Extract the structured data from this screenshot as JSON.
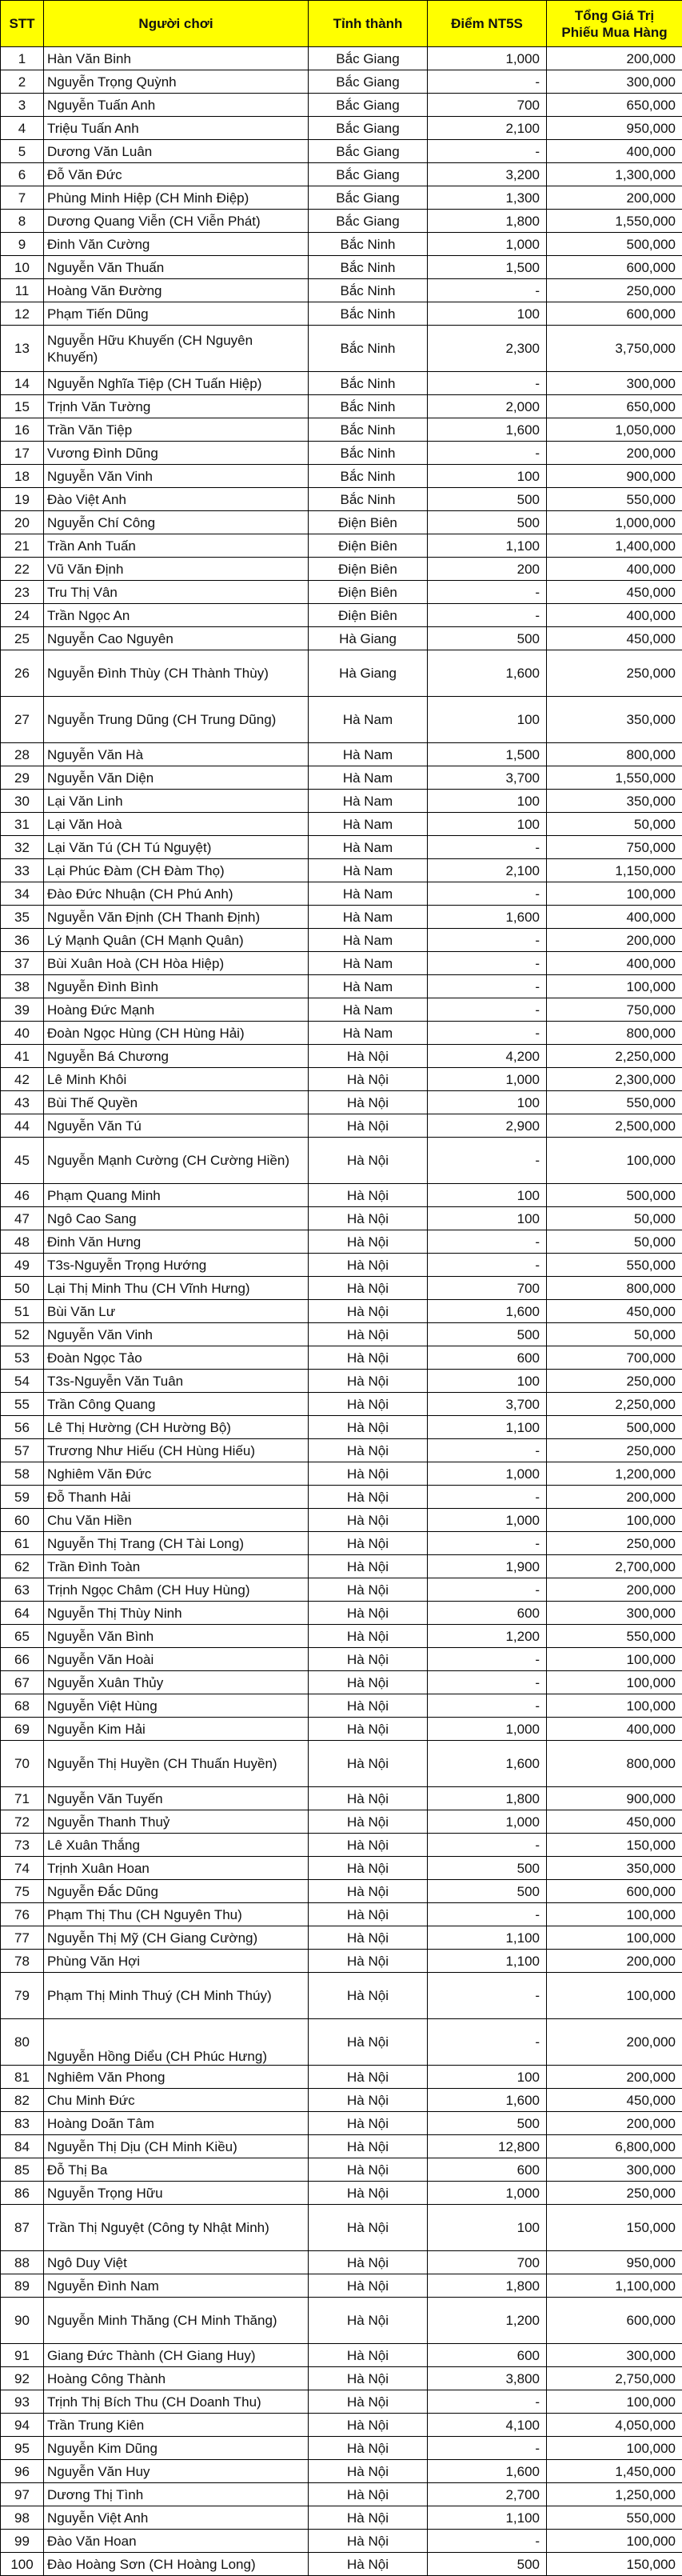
{
  "header": {
    "stt": "STT",
    "player": "Người chơi",
    "province": "Tỉnh thành",
    "points": "Điểm NT5S",
    "total_line1": "Tổng Giá Trị",
    "total_line2": "Phiếu Mua Hàng"
  },
  "colors": {
    "header_bg": "#ffff00",
    "grid": "#000000"
  },
  "rows": [
    [
      "1",
      "Hàn Văn Binh",
      "Bắc Giang",
      "1,000",
      "200,000"
    ],
    [
      "2",
      "Nguyễn Trọng Quỳnh",
      "Bắc Giang",
      "-",
      "300,000"
    ],
    [
      "3",
      "Nguyễn Tuấn Anh",
      "Bắc Giang",
      "700",
      "650,000"
    ],
    [
      "4",
      "Triệu Tuấn Anh",
      "Bắc Giang",
      "2,100",
      "950,000"
    ],
    [
      "5",
      "Dương Văn Luân",
      "Bắc Giang",
      "-",
      "400,000"
    ],
    [
      "6",
      "Đỗ Văn Đức",
      "Bắc Giang",
      "3,200",
      "1,300,000"
    ],
    [
      "7",
      "Phùng Minh Hiệp (CH Minh Điệp)",
      "Bắc Giang",
      "1,300",
      "200,000"
    ],
    [
      "8",
      "Dương Quang Viễn (CH Viễn Phát)",
      "Bắc Giang",
      "1,800",
      "1,550,000"
    ],
    [
      "9",
      "Đinh Văn  Cường",
      "Bắc Ninh",
      "1,000",
      "500,000"
    ],
    [
      "10",
      "Nguyễn Văn Thuấn",
      "Bắc Ninh",
      "1,500",
      "600,000"
    ],
    [
      "11",
      "Hoàng Văn Đường",
      "Bắc Ninh",
      "-",
      "250,000"
    ],
    [
      "12",
      "Phạm Tiến Dũng",
      "Bắc Ninh",
      "100",
      "600,000"
    ],
    [
      "13",
      "Nguyễn Hữu Khuyến (CH Nguyên Khuyến)",
      "Bắc Ninh",
      "2,300",
      "3,750,000"
    ],
    [
      "14",
      "Nguyễn Nghĩa Tiệp (CH Tuấn Hiệp)",
      "Bắc Ninh",
      "-",
      "300,000"
    ],
    [
      "15",
      "Trịnh Văn Tường",
      "Bắc Ninh",
      "2,000",
      "650,000"
    ],
    [
      "16",
      "Trần Văn Tiệp",
      "Bắc Ninh",
      "1,600",
      "1,050,000"
    ],
    [
      "17",
      "Vương Đình Dũng",
      "Bắc Ninh",
      "-",
      "200,000"
    ],
    [
      "18",
      "Nguyễn Văn Vinh",
      "Bắc Ninh",
      "100",
      "900,000"
    ],
    [
      "19",
      "Đào Việt Anh",
      "Bắc Ninh",
      "500",
      "550,000"
    ],
    [
      "20",
      "Nguyễn Chí Công",
      "Điện Biên",
      "500",
      "1,000,000"
    ],
    [
      "21",
      "Trần Anh Tuấn",
      "Điện Biên",
      "1,100",
      "1,400,000"
    ],
    [
      "22",
      "Vũ Văn Định",
      "Điện Biên",
      "200",
      "400,000"
    ],
    [
      "23",
      "Tru Thị Vân",
      "Điện Biên",
      "-",
      "450,000"
    ],
    [
      "24",
      "Trần  Ngọc An",
      "Điện Biên",
      "-",
      "400,000"
    ],
    [
      "25",
      "Nguyễn Cao Nguyên",
      "Hà Giang",
      "500",
      "450,000"
    ],
    [
      "26",
      "Nguyễn Đình Thùy (CH Thành Thùy)",
      "Hà Giang",
      "1,600",
      "250,000"
    ],
    [
      "27",
      "Nguyễn Trung Dũng (CH Trung Dũng)",
      "Hà Nam",
      "100",
      "350,000"
    ],
    [
      "28",
      "Nguyễn Văn Hà",
      "Hà Nam",
      "1,500",
      "800,000"
    ],
    [
      "29",
      "Nguyễn Văn Diện",
      "Hà Nam",
      "3,700",
      "1,550,000"
    ],
    [
      "30",
      "Lại Văn Linh",
      "Hà Nam",
      "100",
      "350,000"
    ],
    [
      "31",
      "Lại Văn Hoà",
      "Hà Nam",
      "100",
      "50,000"
    ],
    [
      "32",
      "Lại Văn  Tú (CH Tú Nguyệt)",
      "Hà Nam",
      "-",
      "750,000"
    ],
    [
      "33",
      "Lại Phúc Đàm (CH Đàm Thọ)",
      "Hà Nam",
      "2,100",
      "1,150,000"
    ],
    [
      "34",
      "Đào Đức Nhuận (CH Phú Anh)",
      "Hà Nam",
      "-",
      "100,000"
    ],
    [
      "35",
      "Nguyễn Văn Định (CH Thanh Định)",
      "Hà Nam",
      "1,600",
      "400,000"
    ],
    [
      "36",
      "Lý Mạnh Quân (CH Mạnh Quân)",
      "Hà Nam",
      "-",
      "200,000"
    ],
    [
      "37",
      "Bùi Xuân Hoà (CH Hòa Hiệp)",
      "Hà Nam",
      "-",
      "400,000"
    ],
    [
      "38",
      "Nguyễn Đình Bình",
      "Hà Nam",
      "-",
      "100,000"
    ],
    [
      "39",
      "Hoàng Đức  Mạnh",
      "Hà Nam",
      "-",
      "750,000"
    ],
    [
      "40",
      "Đoàn Ngọc Hùng (CH Hùng Hải)",
      "Hà Nam",
      "-",
      "800,000"
    ],
    [
      "41",
      "Nguyễn Bá Chương",
      "Hà Nội",
      "4,200",
      "2,250,000"
    ],
    [
      "42",
      "Lê Minh Khôi",
      "Hà Nội",
      "1,000",
      "2,300,000"
    ],
    [
      "43",
      "Bùi Thế Quyền",
      "Hà Nội",
      "100",
      "550,000"
    ],
    [
      "44",
      "Nguyễn Văn  Tú",
      "Hà Nội",
      "2,900",
      "2,500,000"
    ],
    [
      "45",
      "Nguyễn Mạnh Cường (CH Cường Hiền)",
      "Hà Nội",
      "-",
      "100,000"
    ],
    [
      "46",
      "Phạm Quang Minh",
      "Hà Nội",
      "100",
      "500,000"
    ],
    [
      "47",
      "Ngô Cao Sang",
      "Hà Nội",
      "100",
      "50,000"
    ],
    [
      "48",
      "Đinh Văn Hưng",
      "Hà Nội",
      "-",
      "50,000"
    ],
    [
      "49",
      "T3s-Nguyễn Trọng Hướng",
      "Hà Nội",
      "-",
      "550,000"
    ],
    [
      "50",
      "Lại Thị Minh Thu (CH Vĩnh Hưng)",
      "Hà Nội",
      "700",
      "800,000"
    ],
    [
      "51",
      "Bùi Văn Lư",
      "Hà Nội",
      "1,600",
      "450,000"
    ],
    [
      "52",
      "Nguyễn Văn Vinh",
      "Hà Nội",
      "500",
      "50,000"
    ],
    [
      "53",
      "Đoàn Ngọc Tảo",
      "Hà Nội",
      "600",
      "700,000"
    ],
    [
      "54",
      "T3s-Nguyễn Văn Tuân",
      "Hà Nội",
      "100",
      "250,000"
    ],
    [
      "55",
      "Trần Công Quang",
      "Hà Nội",
      "3,700",
      "2,250,000"
    ],
    [
      "56",
      "Lê Thị  Hường (CH Hường Bộ)",
      "Hà Nội",
      "1,100",
      "500,000"
    ],
    [
      "57",
      "Trương Như Hiếu (CH Hùng Hiếu)",
      "Hà Nội",
      "-",
      "250,000"
    ],
    [
      "58",
      "Nghiêm Văn Đức",
      "Hà Nội",
      "1,000",
      "1,200,000"
    ],
    [
      "59",
      "Đỗ Thanh Hải",
      "Hà Nội",
      "-",
      "200,000"
    ],
    [
      "60",
      "Chu Văn Hiền",
      "Hà Nội",
      "1,000",
      "100,000"
    ],
    [
      "61",
      "Nguyễn Thị Trang (CH Tài Long)",
      "Hà Nội",
      "-",
      "250,000"
    ],
    [
      "62",
      "Trần Đình  Toàn",
      "Hà Nội",
      "1,900",
      "2,700,000"
    ],
    [
      "63",
      "Trịnh Ngọc Châm (CH Huy Hùng)",
      "Hà Nội",
      "-",
      "200,000"
    ],
    [
      "64",
      "Nguyễn Thị Thùy Ninh",
      "Hà Nội",
      "600",
      "300,000"
    ],
    [
      "65",
      "Nguyễn Văn Bình",
      "Hà Nội",
      "1,200",
      "550,000"
    ],
    [
      "66",
      "Nguyễn Văn Hoài",
      "Hà Nội",
      "-",
      "100,000"
    ],
    [
      "67",
      "Nguyễn Xuân Thủy",
      "Hà Nội",
      "-",
      "100,000"
    ],
    [
      "68",
      "Nguyễn Việt Hùng",
      "Hà Nội",
      "-",
      "100,000"
    ],
    [
      "69",
      "Nguyễn Kim  Hải",
      "Hà Nội",
      "1,000",
      "400,000"
    ],
    [
      "70",
      "Nguyễn Thị Huyền (CH Thuấn Huyền)",
      "Hà Nội",
      "1,600",
      "800,000"
    ],
    [
      "71",
      "Nguyễn Văn  Tuyến",
      "Hà Nội",
      "1,800",
      "900,000"
    ],
    [
      "72",
      "Nguyễn Thanh Thuỷ",
      "Hà Nội",
      "1,000",
      "450,000"
    ],
    [
      "73",
      "Lê Xuân Thắng",
      "Hà Nội",
      "-",
      "150,000"
    ],
    [
      "74",
      "Trịnh Xuân Hoan",
      "Hà Nội",
      "500",
      "350,000"
    ],
    [
      "75",
      "Nguyễn Đắc Dũng",
      "Hà Nội",
      "500",
      "600,000"
    ],
    [
      "76",
      "Phạm Thị Thu (CH Nguyên Thu)",
      "Hà Nội",
      "-",
      "100,000"
    ],
    [
      "77",
      "Nguyễn Thị Mỹ (CH Giang Cường)",
      "Hà Nội",
      "1,100",
      "100,000"
    ],
    [
      "78",
      "Phùng Văn Hợi",
      "Hà Nội",
      "1,100",
      "200,000"
    ],
    [
      "79",
      "Phạm Thị Minh Thuý (CH Minh Thúy)",
      "Hà Nội",
      "-",
      "100,000"
    ],
    [
      "80",
      "Nguyễn Hồng  Diểu (CH Phúc Hưng)",
      "Hà Nội",
      "-",
      "200,000"
    ],
    [
      "81",
      "Nghiêm Văn Phong",
      "Hà Nội",
      "100",
      "200,000"
    ],
    [
      "82",
      "Chu Minh Đức",
      "Hà Nội",
      "1,600",
      "450,000"
    ],
    [
      "83",
      "Hoàng  Doãn Tâm",
      "Hà Nội",
      "500",
      "200,000"
    ],
    [
      "84",
      "Nguyễn Thị Dịu (CH Minh Kiều)",
      "Hà Nội",
      "12,800",
      "6,800,000"
    ],
    [
      "85",
      "Đỗ Thị Ba",
      "Hà Nội",
      "600",
      "300,000"
    ],
    [
      "86",
      "Nguyễn Trọng Hữu",
      "Hà Nội",
      "1,000",
      "250,000"
    ],
    [
      "87",
      "Trần Thị Nguyệt (Công ty Nhật Minh)",
      "Hà Nội",
      "100",
      "150,000"
    ],
    [
      "88",
      "Ngô Duy Việt",
      "Hà Nội",
      "700",
      "950,000"
    ],
    [
      "89",
      "Nguyễn Đình Nam",
      "Hà Nội",
      "1,800",
      "1,100,000"
    ],
    [
      "90",
      "Nguyễn Minh Thăng (CH Minh Thăng)",
      "Hà Nội",
      "1,200",
      "600,000"
    ],
    [
      "91",
      "Giang Đức Thành (CH Giang Huy)",
      "Hà Nội",
      "600",
      "300,000"
    ],
    [
      "92",
      "Hoàng Công Thành",
      "Hà Nội",
      "3,800",
      "2,750,000"
    ],
    [
      "93",
      "Trịnh Thị Bích Thu (CH Doanh Thu)",
      "Hà Nội",
      "-",
      "100,000"
    ],
    [
      "94",
      "Trần Trung Kiên",
      "Hà Nội",
      "4,100",
      "4,050,000"
    ],
    [
      "95",
      "Nguyễn Kim Dũng",
      "Hà Nội",
      "-",
      "100,000"
    ],
    [
      "96",
      "Nguyễn Văn Huy",
      "Hà Nội",
      "1,600",
      "1,450,000"
    ],
    [
      "97",
      "Dương Thị Tình",
      "Hà Nội",
      "2,700",
      "1,250,000"
    ],
    [
      "98",
      "Nguyễn Việt Anh",
      "Hà Nội",
      "1,100",
      "550,000"
    ],
    [
      "99",
      "Đào Văn Hoan",
      "Hà Nội",
      "-",
      "100,000"
    ],
    [
      "100",
      "Đào Hoàng Sơn (CH Hoàng Long)",
      "Hà Nội",
      "500",
      "150,000"
    ]
  ]
}
